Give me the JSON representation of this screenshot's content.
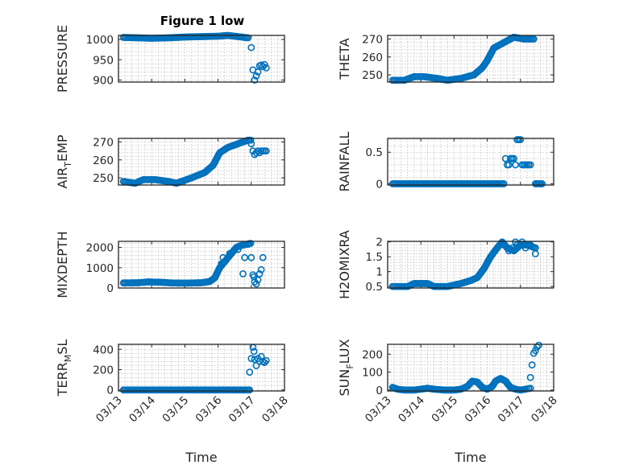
{
  "figure": {
    "title": "Figure 1 low",
    "marker_color": "#0072BD"
  },
  "chart_data": [
    {
      "type": "scatter",
      "ylabel": "PRESSURE",
      "ylabel_sub": "",
      "ylabel_tail": "",
      "xlim": [
        0,
        5
      ],
      "ylim": [
        895,
        1010
      ],
      "yticks": [
        900,
        950,
        1000
      ],
      "ytick_labels": [
        "900",
        "950",
        "1000"
      ],
      "xticks": [
        0,
        1,
        2,
        3,
        4,
        5
      ],
      "xtick_labels": [
        "03/13",
        "03/14",
        "03/15",
        "03/16",
        "03/17",
        "03/18"
      ],
      "show_xtick_labels": false,
      "xlabel": "",
      "grid": true,
      "segments": [
        {
          "x": [
            0.15,
            0.6,
            1.0,
            1.5,
            2.0,
            2.5,
            3.0,
            3.3,
            3.6,
            3.9
          ],
          "y": [
            1005,
            1004,
            1003,
            1004,
            1006,
            1007,
            1008,
            1010,
            1007,
            1004
          ]
        }
      ],
      "points": [
        [
          4.0,
          980
        ],
        [
          4.05,
          925
        ],
        [
          4.1,
          900
        ],
        [
          4.15,
          910
        ],
        [
          4.2,
          920
        ],
        [
          4.25,
          935
        ],
        [
          4.3,
          937
        ],
        [
          4.35,
          933
        ],
        [
          4.4,
          938
        ],
        [
          4.45,
          930
        ]
      ]
    },
    {
      "type": "scatter",
      "ylabel": "THETA",
      "ylabel_sub": "",
      "ylabel_tail": "",
      "xlim": [
        0,
        5
      ],
      "ylim": [
        246,
        272
      ],
      "yticks": [
        250,
        260,
        270
      ],
      "ytick_labels": [
        "250",
        "260",
        "270"
      ],
      "xticks": [
        0,
        1,
        2,
        3,
        4,
        5
      ],
      "xtick_labels": [
        "03/13",
        "03/14",
        "03/15",
        "03/16",
        "03/17",
        "03/18"
      ],
      "show_xtick_labels": false,
      "xlabel": "",
      "grid": true,
      "segments": [
        {
          "x": [
            0.15,
            0.5,
            0.8,
            1.1,
            1.5,
            1.8,
            2.2,
            2.6,
            2.85,
            3.0,
            3.2,
            3.5,
            3.8,
            4.1,
            4.4
          ],
          "y": [
            247,
            247,
            249,
            249,
            248,
            247,
            248,
            250,
            254,
            258,
            265,
            268,
            271,
            270,
            270
          ]
        }
      ],
      "points": []
    },
    {
      "type": "scatter",
      "ylabel": "AIR",
      "ylabel_sub": "T",
      "ylabel_tail": "EMP",
      "xlim": [
        0,
        5
      ],
      "ylim": [
        246,
        272
      ],
      "yticks": [
        250,
        260,
        270
      ],
      "ytick_labels": [
        "250",
        "260",
        "270"
      ],
      "xticks": [
        0,
        1,
        2,
        3,
        4,
        5
      ],
      "xtick_labels": [
        "03/13",
        "03/14",
        "03/15",
        "03/16",
        "03/17",
        "03/18"
      ],
      "show_xtick_labels": false,
      "xlabel": "",
      "grid": true,
      "segments": [
        {
          "x": [
            0.15,
            0.5,
            0.75,
            1.1,
            1.5,
            1.75,
            2.2,
            2.6,
            2.85,
            3.05,
            3.3,
            3.6,
            3.9,
            3.98
          ],
          "y": [
            248,
            247,
            249,
            249,
            248,
            247,
            250,
            253,
            257,
            264,
            267,
            269,
            271,
            271
          ]
        }
      ],
      "points": [
        [
          4.0,
          269
        ],
        [
          4.05,
          265
        ],
        [
          4.1,
          263
        ],
        [
          4.15,
          264
        ],
        [
          4.2,
          265
        ],
        [
          4.25,
          264
        ],
        [
          4.3,
          265
        ],
        [
          4.35,
          265
        ],
        [
          4.4,
          265
        ],
        [
          4.45,
          265
        ]
      ]
    },
    {
      "type": "scatter",
      "ylabel": "RAINFALL",
      "ylabel_sub": "",
      "ylabel_tail": "",
      "xlim": [
        0,
        5
      ],
      "ylim": [
        -0.02,
        0.72
      ],
      "yticks": [
        0,
        0.5
      ],
      "ytick_labels": [
        "0",
        "0.5"
      ],
      "xticks": [
        0,
        1,
        2,
        3,
        4,
        5
      ],
      "xtick_labels": [
        "03/13",
        "03/14",
        "03/15",
        "03/16",
        "03/17",
        "03/18"
      ],
      "show_xtick_labels": false,
      "xlabel": "",
      "grid": true,
      "segments": [
        {
          "x": [
            0.15,
            1.0,
            2.0,
            3.0,
            3.5
          ],
          "y": [
            0,
            0,
            0,
            0,
            0
          ]
        },
        {
          "x": [
            4.45,
            4.65
          ],
          "y": [
            0,
            0
          ]
        }
      ],
      "points": [
        [
          3.55,
          0.4
        ],
        [
          3.6,
          0.3
        ],
        [
          3.65,
          0.3
        ],
        [
          3.7,
          0.4
        ],
        [
          3.75,
          0.4
        ],
        [
          3.8,
          0.4
        ],
        [
          3.85,
          0.3
        ],
        [
          3.9,
          0.7
        ],
        [
          3.95,
          0.7
        ],
        [
          4.0,
          0.7
        ],
        [
          4.05,
          0.3
        ],
        [
          4.1,
          0.3
        ],
        [
          4.15,
          0.3
        ],
        [
          4.2,
          0.3
        ],
        [
          4.25,
          0.3
        ],
        [
          4.3,
          0.3
        ]
      ]
    },
    {
      "type": "scatter",
      "ylabel": "MIXDEPTH",
      "ylabel_sub": "",
      "ylabel_tail": "",
      "xlim": [
        0,
        5
      ],
      "ylim": [
        0,
        2300
      ],
      "yticks": [
        0,
        1000,
        2000
      ],
      "ytick_labels": [
        "0",
        "1000",
        "2000"
      ],
      "xticks": [
        0,
        1,
        2,
        3,
        4,
        5
      ],
      "xtick_labels": [
        "03/13",
        "03/14",
        "03/15",
        "03/16",
        "03/17",
        "03/18"
      ],
      "show_xtick_labels": false,
      "xlabel": "",
      "grid": true,
      "segments": [
        {
          "x": [
            0.15,
            0.6,
            0.9,
            1.3,
            1.6,
            2.0,
            2.5,
            2.75,
            2.9,
            3.05,
            3.2,
            3.3,
            3.45,
            3.55,
            3.7,
            3.85,
            3.98
          ],
          "y": [
            250,
            260,
            300,
            280,
            250,
            240,
            260,
            320,
            500,
            1000,
            1300,
            1500,
            1800,
            2000,
            2100,
            2150,
            2200
          ]
        }
      ],
      "points": [
        [
          3.1,
          1200
        ],
        [
          3.15,
          1500
        ],
        [
          3.35,
          1700
        ],
        [
          3.6,
          1900
        ],
        [
          3.75,
          700
        ],
        [
          3.8,
          1500
        ],
        [
          3.9,
          2150
        ],
        [
          4.0,
          1500
        ],
        [
          4.05,
          650
        ],
        [
          4.08,
          550
        ],
        [
          4.1,
          300
        ],
        [
          4.15,
          200
        ],
        [
          4.2,
          400
        ],
        [
          4.25,
          700
        ],
        [
          4.3,
          900
        ],
        [
          4.35,
          1500
        ]
      ]
    },
    {
      "type": "scatter",
      "ylabel": "H2OMIXRA",
      "ylabel_sub": "",
      "ylabel_tail": "",
      "xlim": [
        0,
        5
      ],
      "ylim": [
        0.45,
        2.02
      ],
      "yticks": [
        0.5,
        1,
        1.5,
        2
      ],
      "ytick_labels": [
        "0.5",
        "1",
        "1.5",
        "2"
      ],
      "xticks": [
        0,
        1,
        2,
        3,
        4,
        5
      ],
      "xtick_labels": [
        "03/13",
        "03/14",
        "03/15",
        "03/16",
        "03/17",
        "03/18"
      ],
      "show_xtick_labels": false,
      "xlabel": "",
      "grid": true,
      "segments": [
        {
          "x": [
            0.15,
            0.6,
            0.8,
            1.2,
            1.4,
            1.8,
            2.2,
            2.5,
            2.7,
            2.9,
            3.1,
            3.3,
            3.45,
            3.6,
            3.8,
            4.0,
            4.2,
            4.45
          ],
          "y": [
            0.5,
            0.5,
            0.6,
            0.6,
            0.5,
            0.5,
            0.6,
            0.7,
            0.8,
            1.1,
            1.5,
            1.8,
            2.0,
            1.8,
            1.7,
            1.9,
            1.9,
            1.8
          ]
        }
      ],
      "points": [
        [
          3.5,
          1.9
        ],
        [
          3.65,
          1.7
        ],
        [
          3.75,
          1.8
        ],
        [
          3.85,
          2.0
        ],
        [
          3.9,
          1.9
        ],
        [
          4.05,
          2.0
        ],
        [
          4.15,
          1.8
        ],
        [
          4.3,
          1.9
        ],
        [
          4.45,
          1.6
        ]
      ]
    },
    {
      "type": "scatter",
      "ylabel": "TERR",
      "ylabel_sub": "M",
      "ylabel_tail": "SL",
      "xlim": [
        0,
        5
      ],
      "ylim": [
        -10,
        450
      ],
      "yticks": [
        0,
        200,
        400
      ],
      "ytick_labels": [
        "0",
        "200",
        "400"
      ],
      "xticks": [
        0,
        1,
        2,
        3,
        4,
        5
      ],
      "xtick_labels": [
        "03/13",
        "03/14",
        "03/15",
        "03/16",
        "03/17",
        "03/18"
      ],
      "show_xtick_labels": true,
      "xlabel": "Time",
      "grid": true,
      "segments": [
        {
          "x": [
            0.15,
            1.0,
            2.0,
            3.0,
            3.95
          ],
          "y": [
            0,
            0,
            0,
            0,
            0
          ]
        }
      ],
      "points": [
        [
          3.95,
          175
        ],
        [
          4.0,
          310
        ],
        [
          4.05,
          420
        ],
        [
          4.08,
          380
        ],
        [
          4.1,
          300
        ],
        [
          4.15,
          240
        ],
        [
          4.2,
          310
        ],
        [
          4.25,
          280
        ],
        [
          4.3,
          330
        ],
        [
          4.35,
          280
        ],
        [
          4.4,
          270
        ],
        [
          4.45,
          290
        ]
      ]
    },
    {
      "type": "scatter",
      "ylabel": "SUN",
      "ylabel_sub": "F",
      "ylabel_tail": "LUX",
      "xlim": [
        0,
        5
      ],
      "ylim": [
        -5,
        255
      ],
      "yticks": [
        0,
        100,
        200
      ],
      "ytick_labels": [
        "0",
        "100",
        "200"
      ],
      "xticks": [
        0,
        1,
        2,
        3,
        4,
        5
      ],
      "xtick_labels": [
        "03/13",
        "03/14",
        "03/15",
        "03/16",
        "03/17",
        "03/18"
      ],
      "show_xtick_labels": true,
      "xlabel": "Time",
      "grid": true,
      "segments": [
        {
          "x": [
            0.15,
            0.3,
            0.5,
            0.8,
            1.0,
            1.2,
            1.4,
            1.7,
            2.0,
            2.2,
            2.4,
            2.55,
            2.7,
            2.85,
            3.0,
            3.15,
            3.25,
            3.4,
            3.55,
            3.7,
            3.85,
            4.0,
            4.15,
            4.3
          ],
          "y": [
            15,
            5,
            0,
            0,
            5,
            10,
            5,
            0,
            0,
            5,
            20,
            50,
            45,
            15,
            5,
            20,
            50,
            65,
            50,
            15,
            5,
            0,
            5,
            10
          ]
        }
      ],
      "points": [
        [
          4.3,
          70
        ],
        [
          4.35,
          140
        ],
        [
          4.4,
          205
        ],
        [
          4.45,
          220
        ],
        [
          4.5,
          240
        ],
        [
          4.55,
          250
        ]
      ]
    }
  ]
}
